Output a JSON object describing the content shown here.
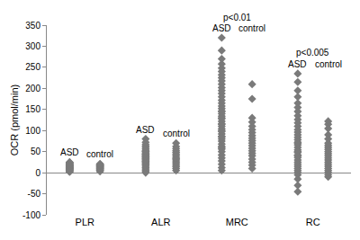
{
  "chart_data": {
    "type": "strip",
    "y_label": "OCR (pmol/min)",
    "categories": [
      "PLR",
      "ALR",
      "MRC",
      "RC"
    ],
    "ylim": [
      -100,
      350
    ],
    "yticks": [
      -100,
      -50,
      0,
      50,
      100,
      150,
      200,
      250,
      300,
      350
    ],
    "grid": false,
    "series": [
      {
        "name": "ASD",
        "color": "#7a7a7a",
        "marker": "diamond",
        "values": [
          [
            2,
            4,
            5,
            6,
            7,
            8,
            9,
            10,
            10,
            11,
            12,
            12,
            13,
            14,
            15,
            15,
            16,
            17,
            18,
            19,
            20,
            21,
            22,
            23,
            24,
            25,
            3,
            8,
            13,
            18
          ],
          [
            0,
            3,
            6,
            9,
            12,
            15,
            18,
            20,
            22,
            25,
            27,
            30,
            32,
            35,
            37,
            40,
            42,
            45,
            47,
            50,
            53,
            56,
            60,
            63,
            67,
            72,
            80,
            28,
            33,
            38,
            44,
            51
          ],
          [
            5,
            12,
            20,
            28,
            35,
            42,
            50,
            56,
            62,
            68,
            75,
            80,
            86,
            92,
            98,
            104,
            110,
            116,
            122,
            128,
            134,
            140,
            146,
            152,
            158,
            165,
            172,
            180,
            188,
            195,
            202,
            210,
            218,
            225,
            232,
            240,
            248,
            258,
            270,
            290,
            320,
            60,
            85,
            100,
            115,
            130,
            145
          ],
          [
            -45,
            -30,
            -15,
            -5,
            0,
            5,
            10,
            15,
            20,
            25,
            30,
            36,
            42,
            48,
            54,
            60,
            66,
            72,
            78,
            84,
            90,
            96,
            102,
            110,
            118,
            126,
            135,
            145,
            155,
            165,
            180,
            195,
            215,
            235,
            40,
            50,
            70
          ]
        ]
      },
      {
        "name": "control",
        "color": "#7a7a7a",
        "marker": "diamond",
        "values": [
          [
            3,
            5,
            6,
            8,
            9,
            10,
            11,
            12,
            13,
            14,
            15,
            16,
            17,
            18,
            19,
            20,
            21
          ],
          [
            5,
            10,
            14,
            18,
            22,
            26,
            30,
            33,
            36,
            40,
            44,
            48,
            52,
            57,
            62,
            70
          ],
          [
            10,
            18,
            25,
            32,
            40,
            46,
            52,
            58,
            64,
            70,
            76,
            82,
            88,
            95,
            102,
            110,
            120,
            130,
            175,
            210
          ],
          [
            -10,
            -5,
            0,
            5,
            10,
            15,
            20,
            25,
            30,
            35,
            40,
            45,
            50,
            55,
            60,
            65,
            70,
            80,
            90,
            105,
            115,
            122
          ]
        ]
      }
    ],
    "annotations": [
      {
        "text": "p<0.01",
        "category": "MRC"
      },
      {
        "text": "p<0.005",
        "category": "RC"
      }
    ]
  }
}
